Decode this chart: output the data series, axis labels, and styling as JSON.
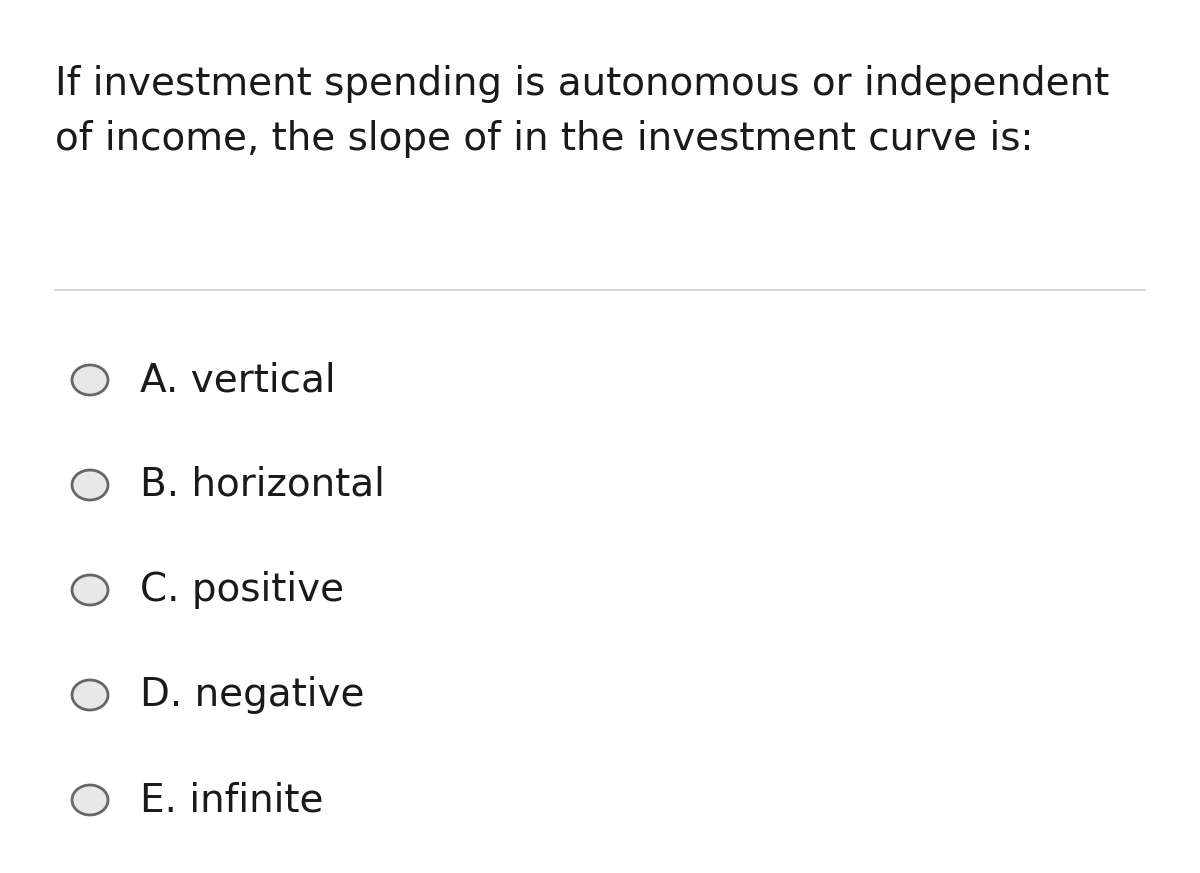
{
  "question_line1": "If investment spending is autonomous or independent",
  "question_line2": "of income, the slope of in the investment curve is:",
  "options": [
    "A. vertical",
    "B. horizontal",
    "C. positive",
    "D. negative",
    "E. infinite"
  ],
  "background_color": "#ffffff",
  "text_color": "#1a1a1a",
  "question_fontsize": 28,
  "option_fontsize": 28,
  "divider_color": "#cccccc",
  "circle_edge_color": "#666666",
  "circle_face_color": "#e8e8e8",
  "fig_width": 12.0,
  "fig_height": 8.73
}
